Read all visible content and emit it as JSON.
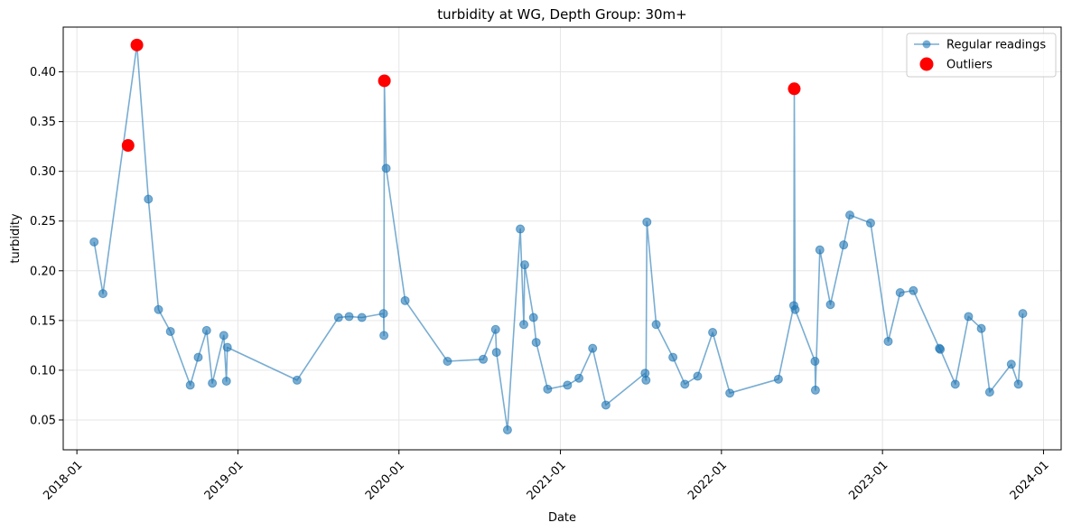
{
  "chart_data": {
    "type": "line",
    "title": "turbidity at WG, Depth Group: 30m+",
    "xlabel": "Date",
    "ylabel": "turbidity",
    "xlim": [
      "2017-12-01",
      "2024-02-10"
    ],
    "ylim": [
      0.02,
      0.445
    ],
    "x_ticks": [
      "2018-01-01",
      "2019-01-01",
      "2020-01-01",
      "2021-01-01",
      "2022-01-01",
      "2023-01-01",
      "2024-01-01"
    ],
    "x_tick_labels": [
      "2018-01",
      "2019-01",
      "2020-01",
      "2021-01",
      "2022-01",
      "2023-01",
      "2024-01"
    ],
    "y_ticks": [
      0.05,
      0.1,
      0.15,
      0.2,
      0.25,
      0.3,
      0.35,
      0.4
    ],
    "y_tick_labels": [
      "0.05",
      "0.10",
      "0.15",
      "0.20",
      "0.25",
      "0.30",
      "0.35",
      "0.40"
    ],
    "grid": true,
    "legend_position": "top-right",
    "legend": [
      "Regular readings",
      "Outliers"
    ],
    "colors": {
      "line": "#1f77b4",
      "outlier": "#ff0000"
    },
    "series": [
      {
        "name": "Regular readings",
        "points": [
          [
            "2018-02-09",
            0.229
          ],
          [
            "2018-03-01",
            0.177
          ],
          [
            "2018-05-17",
            0.427
          ],
          [
            "2018-06-12",
            0.272
          ],
          [
            "2018-07-05",
            0.161
          ],
          [
            "2018-08-01",
            0.139
          ],
          [
            "2018-09-15",
            0.085
          ],
          [
            "2018-10-03",
            0.113
          ],
          [
            "2018-10-22",
            0.14
          ],
          [
            "2018-11-04",
            0.087
          ],
          [
            "2018-11-30",
            0.135
          ],
          [
            "2018-12-06",
            0.089
          ],
          [
            "2018-12-08",
            0.123
          ],
          [
            "2019-05-15",
            0.09
          ],
          [
            "2019-08-17",
            0.153
          ],
          [
            "2019-09-10",
            0.154
          ],
          [
            "2019-10-09",
            0.153
          ],
          [
            "2019-11-27",
            0.157
          ],
          [
            "2019-11-28",
            0.135
          ],
          [
            "2019-11-29",
            0.39
          ],
          [
            "2019-12-03",
            0.303
          ],
          [
            "2020-01-15",
            0.17
          ],
          [
            "2020-04-20",
            0.109
          ],
          [
            "2020-07-10",
            0.111
          ],
          [
            "2020-08-07",
            0.141
          ],
          [
            "2020-08-09",
            0.118
          ],
          [
            "2020-09-03",
            0.04
          ],
          [
            "2020-10-02",
            0.242
          ],
          [
            "2020-10-10",
            0.146
          ],
          [
            "2020-10-12",
            0.206
          ],
          [
            "2020-11-01",
            0.153
          ],
          [
            "2020-11-07",
            0.128
          ],
          [
            "2020-12-03",
            0.081
          ],
          [
            "2021-01-17",
            0.085
          ],
          [
            "2021-02-12",
            0.092
          ],
          [
            "2021-03-15",
            0.122
          ],
          [
            "2021-04-14",
            0.065
          ],
          [
            "2021-07-12",
            0.097
          ],
          [
            "2021-07-14",
            0.09
          ],
          [
            "2021-07-16",
            0.249
          ],
          [
            "2021-08-06",
            0.146
          ],
          [
            "2021-09-13",
            0.113
          ],
          [
            "2021-10-10",
            0.086
          ],
          [
            "2021-11-08",
            0.094
          ],
          [
            "2021-12-12",
            0.138
          ],
          [
            "2022-01-20",
            0.077
          ],
          [
            "2022-05-10",
            0.091
          ],
          [
            "2022-06-14",
            0.165
          ],
          [
            "2022-06-15",
            0.382
          ],
          [
            "2022-06-17",
            0.161
          ],
          [
            "2022-08-01",
            0.109
          ],
          [
            "2022-08-02",
            0.08
          ],
          [
            "2022-08-12",
            0.221
          ],
          [
            "2022-09-05",
            0.166
          ],
          [
            "2022-10-05",
            0.226
          ],
          [
            "2022-10-19",
            0.256
          ],
          [
            "2022-12-05",
            0.248
          ],
          [
            "2023-01-14",
            0.129
          ],
          [
            "2023-02-10",
            0.178
          ],
          [
            "2023-03-12",
            0.18
          ],
          [
            "2023-05-10",
            0.122
          ],
          [
            "2023-05-12",
            0.121
          ],
          [
            "2023-06-15",
            0.086
          ],
          [
            "2023-07-15",
            0.154
          ],
          [
            "2023-08-13",
            0.142
          ],
          [
            "2023-09-01",
            0.078
          ],
          [
            "2023-10-20",
            0.106
          ],
          [
            "2023-11-05",
            0.086
          ],
          [
            "2023-11-15",
            0.157
          ]
        ]
      },
      {
        "name": "Outliers",
        "points": [
          [
            "2018-04-27",
            0.326
          ],
          [
            "2018-05-17",
            0.427
          ],
          [
            "2019-11-29",
            0.391
          ],
          [
            "2022-06-15",
            0.383
          ]
        ]
      }
    ]
  }
}
